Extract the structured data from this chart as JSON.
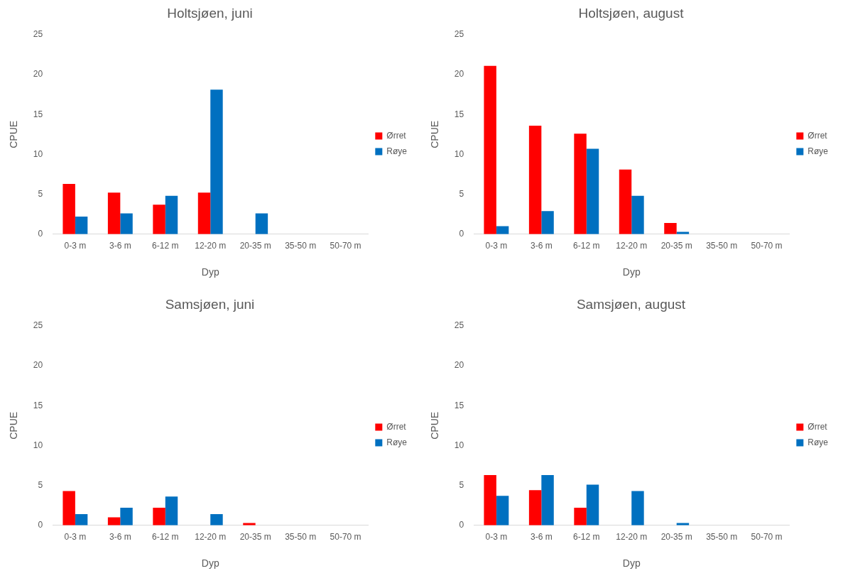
{
  "chart_data": [
    {
      "type": "bar",
      "title": "Holtsjøen, juni",
      "xlabel": "Dyp",
      "ylabel": "CPUE",
      "categories": [
        "0-3 m",
        "3-6 m",
        "6-12 m",
        "12-20 m",
        "20-35 m",
        "35-50 m",
        "50-70 m"
      ],
      "ylim": [
        0,
        25
      ],
      "yticks": [
        0,
        5,
        10,
        15,
        20,
        25
      ],
      "grid": false,
      "legend": "right",
      "series": [
        {
          "name": "Ørret",
          "color": "#ff0000",
          "values": [
            6.3,
            5.2,
            3.7,
            5.2,
            0,
            0,
            0
          ]
        },
        {
          "name": "Røye",
          "color": "#0070c0",
          "values": [
            2.2,
            2.6,
            4.8,
            18.1,
            2.6,
            0,
            0
          ]
        }
      ]
    },
    {
      "type": "bar",
      "title": "Holtsjøen, august",
      "xlabel": "Dyp",
      "ylabel": "CPUE",
      "categories": [
        "0-3 m",
        "3-6 m",
        "6-12 m",
        "12-20 m",
        "20-35 m",
        "35-50 m",
        "50-70 m"
      ],
      "ylim": [
        0,
        25
      ],
      "yticks": [
        0,
        5,
        10,
        15,
        20,
        25
      ],
      "grid": false,
      "legend": "right",
      "series": [
        {
          "name": "Ørret",
          "color": "#ff0000",
          "values": [
            21.1,
            13.6,
            12.6,
            8.1,
            1.4,
            0,
            0
          ]
        },
        {
          "name": "Røye",
          "color": "#0070c0",
          "values": [
            1.0,
            2.9,
            10.7,
            4.8,
            0.3,
            0,
            0
          ]
        }
      ]
    },
    {
      "type": "bar",
      "title": "Samsjøen, juni",
      "xlabel": "Dyp",
      "ylabel": "CPUE",
      "categories": [
        "0-3 m",
        "3-6 m",
        "6-12 m",
        "12-20 m",
        "20-35 m",
        "35-50 m",
        "50-70 m"
      ],
      "ylim": [
        0,
        25
      ],
      "yticks": [
        0,
        5,
        10,
        15,
        20,
        25
      ],
      "grid": false,
      "legend": "right",
      "series": [
        {
          "name": "Ørret",
          "color": "#ff0000",
          "values": [
            4.3,
            1.0,
            2.2,
            0,
            0.3,
            0,
            0
          ]
        },
        {
          "name": "Røye",
          "color": "#0070c0",
          "values": [
            1.4,
            2.2,
            3.6,
            1.4,
            0,
            0,
            0
          ]
        }
      ]
    },
    {
      "type": "bar",
      "title": "Samsjøen, august",
      "xlabel": "Dyp",
      "ylabel": "CPUE",
      "categories": [
        "0-3 m",
        "3-6 m",
        "6-12 m",
        "12-20 m",
        "20-35 m",
        "35-50 m",
        "50-70 m"
      ],
      "ylim": [
        0,
        25
      ],
      "yticks": [
        0,
        5,
        10,
        15,
        20,
        25
      ],
      "grid": false,
      "legend": "right",
      "series": [
        {
          "name": "Ørret",
          "color": "#ff0000",
          "values": [
            6.3,
            4.4,
            2.2,
            0,
            0,
            0,
            0
          ]
        },
        {
          "name": "Røye",
          "color": "#0070c0",
          "values": [
            3.7,
            6.3,
            5.1,
            4.3,
            0.3,
            0,
            0
          ]
        }
      ]
    }
  ]
}
